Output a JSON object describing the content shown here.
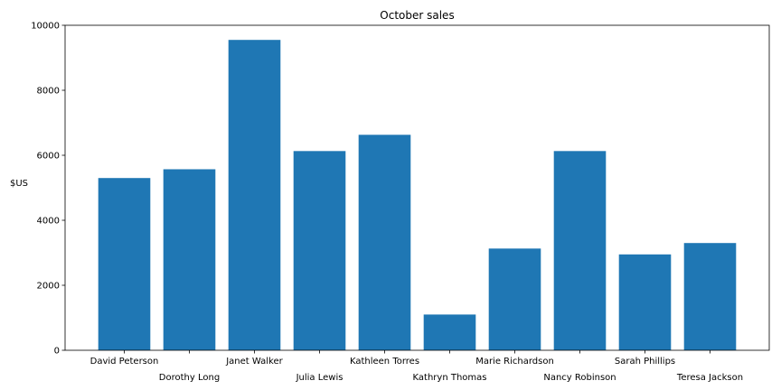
{
  "chart_data": {
    "type": "bar",
    "title": "October sales",
    "xlabel": "",
    "ylabel": "$US",
    "ylim": [
      0,
      10000
    ],
    "yticks": [
      0,
      2000,
      4000,
      6000,
      8000,
      10000
    ],
    "categories": [
      "David Peterson",
      "Dorothy Long",
      "Janet Walker",
      "Julia Lewis",
      "Kathleen Torres",
      "Kathryn Thomas",
      "Marie Richardson",
      "Nancy Robinson",
      "Sarah Phillips",
      "Teresa Jackson"
    ],
    "values": [
      5300,
      5570,
      9550,
      6130,
      6630,
      1100,
      3130,
      6130,
      2950,
      3300
    ],
    "bar_color": "#1f77b4",
    "grid": false,
    "legend": "none"
  }
}
